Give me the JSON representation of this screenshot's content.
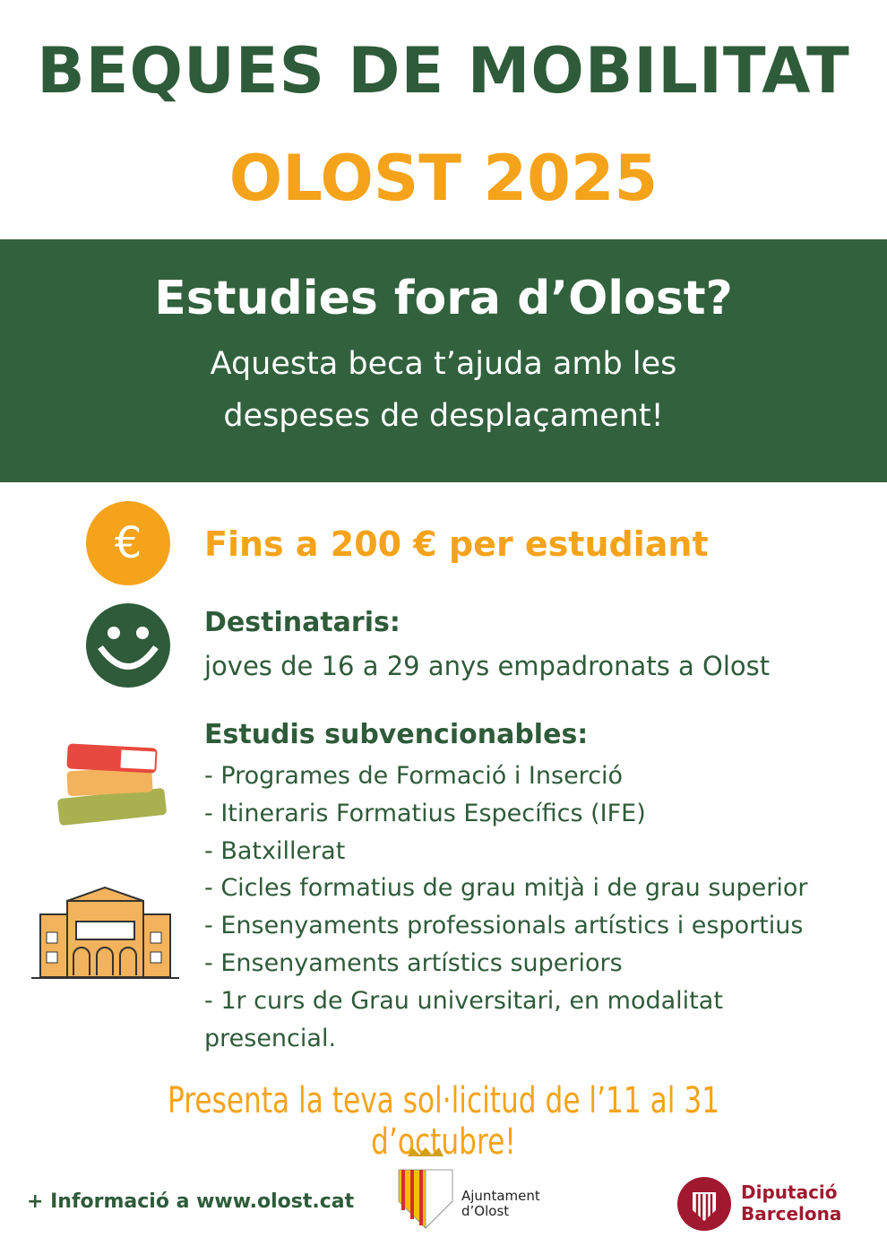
{
  "header": {
    "title": "BEQUES DE MOBILITAT",
    "subtitle": "OLOST 2025"
  },
  "banner": {
    "heading": "Estudies fora d’Olost?",
    "lines": [
      "Aquesta beca t’ajuda amb les",
      "despeses de desplaçament!"
    ]
  },
  "amount": {
    "icon": "€",
    "text": "Fins a 200 € per estudiant"
  },
  "recipients": {
    "heading": "Destinataris:",
    "text": "joves de 16 a 29 anys empadronats a Olost"
  },
  "studies": {
    "heading": "Estudis subvencionables:",
    "items": [
      "- Programes de Formació i Inserció",
      "- Itineraris Formatius Específics (IFE)",
      "- Batxillerat",
      "- Cicles formatius de grau mitjà i de grau superior",
      "- Ensenyaments professionals artístics i esportius",
      "- Ensenyaments artístics superiors",
      "- 1r curs de Grau universitari, en modalitat presencial."
    ]
  },
  "cta": "Presenta la teva sol·licitud de l’11 al 31 d’octubre!",
  "footer": {
    "info": "+ Informació a www.olost.cat",
    "logo_olost": [
      "Ajuntament",
      "d’Olost"
    ],
    "logo_diputacio": [
      "Diputació",
      "Barcelona"
    ]
  }
}
